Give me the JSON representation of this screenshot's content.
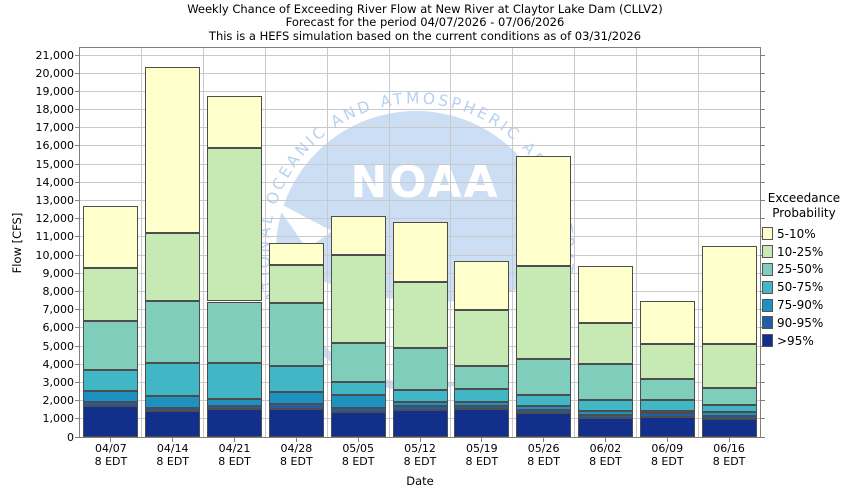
{
  "watermark": {
    "logo_text": "NOAA",
    "org_text": "NATIONAL OCEANIC AND ATMOSPHERIC ADMINISTRATION"
  },
  "chart_data": {
    "type": "bar",
    "stacked": true,
    "title": "Weekly Chance of Exceeding River Flow at New River at Claytor Lake Dam (CLLV2)",
    "subtitle": "Forecast for the period 04/07/2026 - 07/06/2026",
    "note": "This is a HEFS simulation based on the current conditions as of 03/31/2026",
    "xlabel": "Date",
    "ylabel": "Flow [CFS]",
    "ylim": [
      0,
      21000
    ],
    "ytick_step": 1000,
    "grid": true,
    "legend_position": "right",
    "legend_title": [
      "Exceedance",
      "Probability"
    ],
    "categories": [
      "04/07",
      "04/14",
      "04/21",
      "04/28",
      "05/05",
      "05/12",
      "05/19",
      "05/26",
      "06/02",
      "06/09",
      "06/16"
    ],
    "category_sublabel": "8 EDT",
    "units": "CFS",
    "series_note": "series listed bottom-to-top of stack; values are cumulative band tops in CFS",
    "series": [
      {
        "name": ">95%",
        "color": "#132F8C",
        "cumulative_tops": [
          1700,
          1450,
          1550,
          1550,
          1400,
          1500,
          1550,
          1300,
          1050,
          1100,
          1000
        ]
      },
      {
        "name": "90-95%",
        "color": "#225EA8",
        "cumulative_tops": [
          1950,
          1600,
          1700,
          1800,
          1600,
          1700,
          1700,
          1500,
          1200,
          1300,
          1150
        ]
      },
      {
        "name": "75-90%",
        "color": "#1D91C0",
        "cumulative_tops": [
          2550,
          2250,
          2100,
          2500,
          2300,
          1950,
          1950,
          1700,
          1450,
          1450,
          1350
        ]
      },
      {
        "name": "50-75%",
        "color": "#41B6C4",
        "cumulative_tops": [
          3700,
          4050,
          4050,
          3900,
          3050,
          2600,
          2650,
          2300,
          2050,
          2050,
          1750
        ]
      },
      {
        "name": "25-50%",
        "color": "#7FCDBB",
        "cumulative_tops": [
          6400,
          7500,
          7450,
          7350,
          5150,
          4900,
          3900,
          4300,
          4000,
          3200,
          2700
        ]
      },
      {
        "name": "10-25%",
        "color": "#C7E9B4",
        "cumulative_tops": [
          9300,
          11200,
          15900,
          9450,
          10000,
          8500,
          7000,
          9400,
          6250,
          5100,
          5100
        ]
      },
      {
        "name": "5-10%",
        "color": "#FFFFCC",
        "cumulative_tops": [
          12700,
          20350,
          18750,
          10650,
          12150,
          11800,
          9700,
          15450,
          9400,
          7500,
          10500
        ]
      }
    ]
  }
}
